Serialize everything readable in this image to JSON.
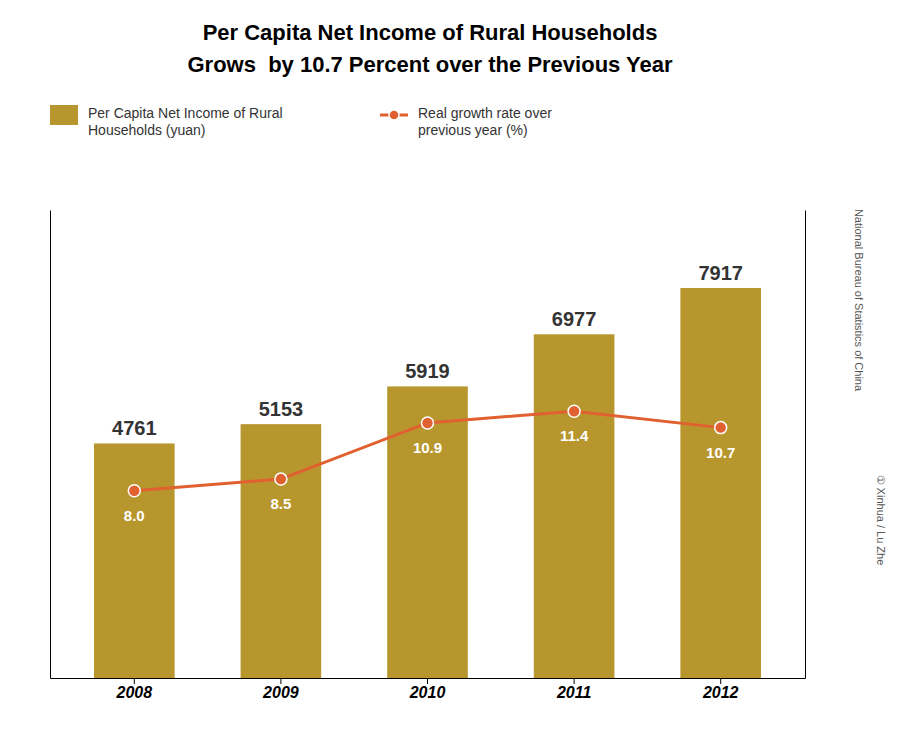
{
  "chart_data": {
    "type": "bar",
    "title": "Per Capita Net Income of Rural Households",
    "subtitle": "Grows  by 10.7 Percent over the Previous Year",
    "categories": [
      "2008",
      "2009",
      "2010",
      "2011",
      "2012"
    ],
    "series": [
      {
        "name": "Per Capita Net Income of Rural\nHouseholds (yuan)",
        "type": "bar",
        "color": "#b8962e",
        "values": [
          4761,
          5153,
          5919,
          6977,
          7917
        ]
      },
      {
        "name": "Real growth rate over\nprevious year (%)",
        "type": "line",
        "axis": "y2",
        "color": "#e06030",
        "marker": "circle",
        "values": [
          8.0,
          8.5,
          10.9,
          11.4,
          10.7
        ],
        "value_labels": [
          "8.0",
          "8.5",
          "10.9",
          "11.4",
          "10.7"
        ]
      }
    ],
    "ylim": [
      0,
      9500
    ],
    "y2lim": [
      0,
      20
    ],
    "tick_labels": "x",
    "data_labels": true,
    "legend": "upper left",
    "annotations": [
      "National Bureau of Statistics of China",
      "① Xinhua / Lu Zhe"
    ]
  }
}
